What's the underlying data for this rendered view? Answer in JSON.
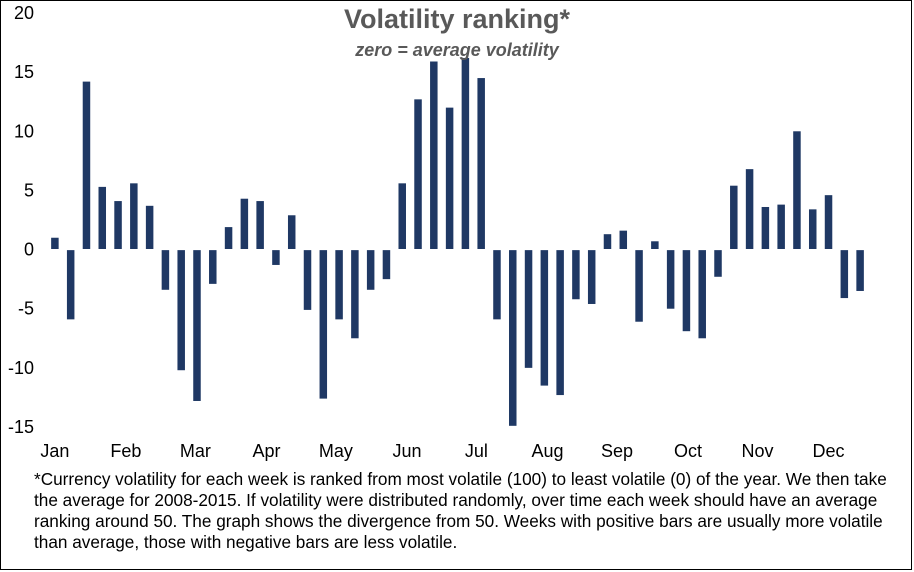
{
  "chart_data": {
    "type": "bar",
    "title": "Volatility ranking*",
    "subtitle": "zero = average volatility",
    "bar_color": "#1F3864",
    "ylim": [
      -15,
      20
    ],
    "yticks": [
      -15,
      -10,
      -5,
      0,
      5,
      10,
      15,
      20
    ],
    "grid": false,
    "legend": "none",
    "month_labels": [
      "Jan",
      "Feb",
      "Mar",
      "Apr",
      "May",
      "Jun",
      "Jul",
      "Aug",
      "Sep",
      "Oct",
      "Nov",
      "Dec"
    ],
    "month_label_week_index": [
      0,
      4.5,
      8.9,
      13.4,
      17.8,
      22.3,
      26.7,
      31.2,
      35.6,
      40.1,
      44.5,
      49
    ],
    "values": [
      1,
      -5.9,
      14.2,
      5.3,
      4.1,
      5.6,
      3.7,
      -3.4,
      -10.2,
      -12.8,
      -2.9,
      1.9,
      4.3,
      4.1,
      -1.3,
      2.9,
      -5.1,
      -12.6,
      -5.9,
      -7.5,
      -3.4,
      -2.5,
      5.6,
      12.7,
      15.9,
      12,
      16.2,
      14.5,
      -5.9,
      -14.9,
      -10,
      -11.5,
      -12.3,
      -4.2,
      -4.6,
      1.3,
      1.6,
      -6.1,
      0.7,
      -5,
      -6.9,
      -7.5,
      -2.3,
      5.4,
      6.8,
      3.6,
      3.8,
      10,
      3.4,
      4.6,
      -4.1,
      -3.5
    ]
  },
  "footnote": "*Currency volatility for each week is ranked from most volatile (100) to least volatile (0) of the year. We then take the average for 2008-2015. If volatility were distributed randomly, over time each week should have an average ranking around 50. The graph shows the divergence from 50. Weeks with positive bars are usually more volatile than average, those with negative bars are less volatile."
}
